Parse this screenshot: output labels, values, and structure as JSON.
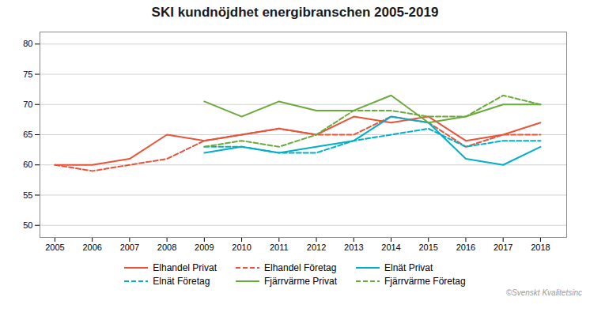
{
  "chart_data": {
    "type": "line",
    "title": "SKI kundnöjdhet energibranschen 2005-2019",
    "x": [
      2005,
      2006,
      2007,
      2008,
      2009,
      2010,
      2011,
      2012,
      2013,
      2014,
      2015,
      2016,
      2017,
      2018
    ],
    "series": [
      {
        "name": "Elhandel Privat",
        "color": "#e8543a",
        "line_style": "solid",
        "values": [
          60,
          60,
          61,
          65,
          64,
          65,
          66,
          65,
          68,
          67,
          68,
          64,
          65,
          67
        ]
      },
      {
        "name": "Elhandel Företag",
        "color": "#e8543a",
        "line_style": "dashed",
        "values": [
          60,
          59,
          60,
          61,
          64,
          65,
          66,
          65,
          65,
          68,
          67,
          63,
          65,
          65
        ]
      },
      {
        "name": "Elnät Privat",
        "color": "#00b0c8",
        "line_style": "solid",
        "values": [
          null,
          null,
          null,
          null,
          62,
          63,
          62,
          63,
          64,
          68,
          67,
          61,
          60,
          63
        ]
      },
      {
        "name": "Elnät Företag",
        "color": "#00b0c8",
        "line_style": "dashed",
        "values": [
          null,
          null,
          null,
          null,
          63,
          63,
          62,
          62,
          64,
          65,
          66,
          63,
          64,
          64
        ]
      },
      {
        "name": "Fjärrvärme Privat",
        "color": "#6aaa3a",
        "line_style": "solid",
        "values": [
          null,
          null,
          null,
          null,
          70.5,
          68,
          70.5,
          69,
          69,
          71.5,
          67,
          68,
          70,
          70
        ]
      },
      {
        "name": "Fjärrvärme Företag",
        "color": "#6aaa3a",
        "line_style": "dashed",
        "values": [
          null,
          null,
          null,
          null,
          63,
          64,
          63,
          65,
          69,
          69,
          68,
          68,
          71.5,
          70
        ]
      }
    ],
    "xlim": [
      2004.6,
      2018.7
    ],
    "xticks": [
      2005,
      2006,
      2007,
      2008,
      2009,
      2010,
      2011,
      2012,
      2013,
      2014,
      2015,
      2016,
      2017,
      2018
    ],
    "ylim": [
      48,
      82
    ],
    "yticks": [
      50,
      55,
      60,
      65,
      70,
      75,
      80
    ],
    "grid": true,
    "legend": "bottom",
    "annotations": [
      "©Svenskt Kvalitetsinc"
    ]
  }
}
